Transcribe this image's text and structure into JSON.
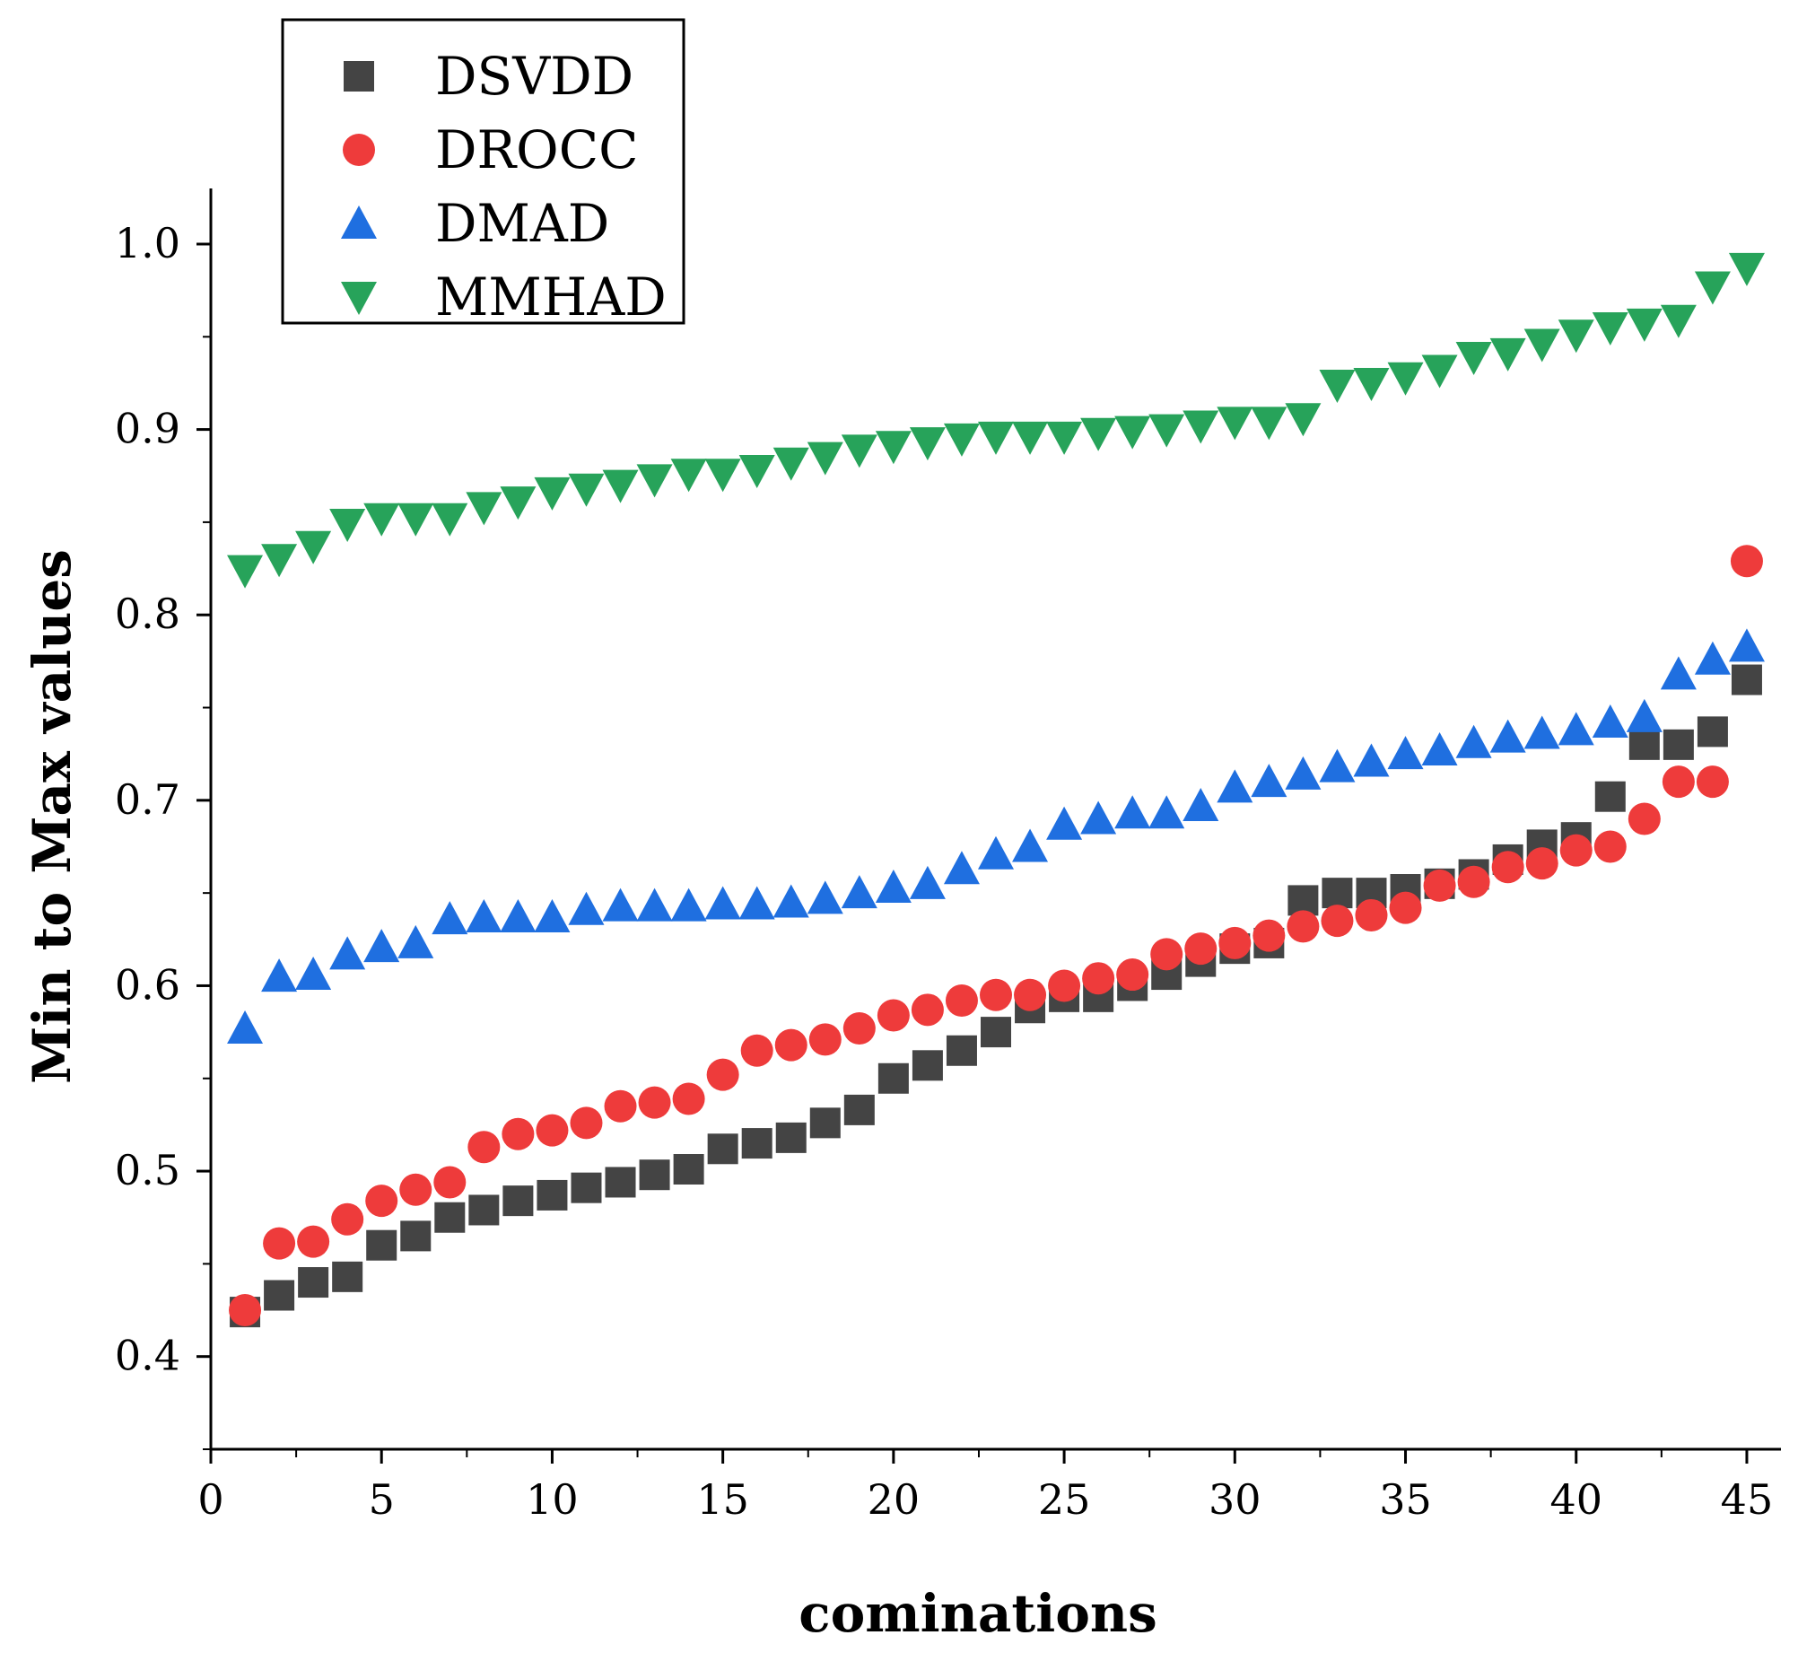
{
  "chart_data": {
    "type": "scatter",
    "title": "",
    "xlabel": "cominations",
    "ylabel": "Min to Max values",
    "xlim": [
      0,
      46
    ],
    "ylim": [
      0.35,
      1.03
    ],
    "x_ticks": [
      0,
      5,
      10,
      15,
      20,
      25,
      30,
      35,
      40,
      45
    ],
    "y_ticks": [
      0.4,
      0.5,
      0.6,
      0.7,
      0.8,
      0.9,
      1.0
    ],
    "x_tick_labels": [
      "0",
      "5",
      "10",
      "15",
      "20",
      "25",
      "30",
      "35",
      "40",
      "45"
    ],
    "y_tick_labels": [
      "0.4",
      "0.5",
      "0.6",
      "0.7",
      "0.8",
      "0.9",
      "1.0"
    ],
    "legend_position": "top-left",
    "x": [
      1,
      2,
      3,
      4,
      5,
      6,
      7,
      8,
      9,
      10,
      11,
      12,
      13,
      14,
      15,
      16,
      17,
      18,
      19,
      20,
      21,
      22,
      23,
      24,
      25,
      26,
      27,
      28,
      29,
      30,
      31,
      32,
      33,
      34,
      35,
      36,
      37,
      38,
      39,
      40,
      41,
      42,
      43,
      44,
      45
    ],
    "series": [
      {
        "name": "DSVDD",
        "marker": "square",
        "color": "#444444",
        "values": [
          0.424,
          0.433,
          0.44,
          0.443,
          0.46,
          0.465,
          0.475,
          0.479,
          0.484,
          0.487,
          0.491,
          0.494,
          0.498,
          0.501,
          0.512,
          0.515,
          0.518,
          0.526,
          0.533,
          0.55,
          0.557,
          0.565,
          0.575,
          0.588,
          0.594,
          0.594,
          0.6,
          0.606,
          0.613,
          0.62,
          0.623,
          0.646,
          0.65,
          0.65,
          0.652,
          0.655,
          0.66,
          0.668,
          0.676,
          0.68,
          0.702,
          0.73,
          0.73,
          0.737,
          0.765
        ]
      },
      {
        "name": "DROCC",
        "marker": "circle",
        "color": "#ee3b3b",
        "values": [
          0.425,
          0.461,
          0.462,
          0.474,
          0.484,
          0.49,
          0.494,
          0.513,
          0.52,
          0.522,
          0.526,
          0.535,
          0.537,
          0.539,
          0.552,
          0.565,
          0.568,
          0.571,
          0.577,
          0.584,
          0.587,
          0.592,
          0.595,
          0.595,
          0.6,
          0.604,
          0.606,
          0.617,
          0.62,
          0.623,
          0.627,
          0.632,
          0.635,
          0.638,
          0.642,
          0.654,
          0.656,
          0.664,
          0.666,
          0.673,
          0.675,
          0.69,
          0.71,
          0.71,
          0.829
        ]
      },
      {
        "name": "DMAD",
        "marker": "triangle-up",
        "color": "#1f6fe0",
        "values": [
          0.577,
          0.605,
          0.606,
          0.617,
          0.621,
          0.623,
          0.636,
          0.637,
          0.637,
          0.637,
          0.641,
          0.643,
          0.643,
          0.643,
          0.644,
          0.644,
          0.645,
          0.647,
          0.65,
          0.653,
          0.655,
          0.663,
          0.671,
          0.675,
          0.687,
          0.69,
          0.693,
          0.693,
          0.697,
          0.707,
          0.71,
          0.714,
          0.718,
          0.721,
          0.725,
          0.727,
          0.731,
          0.734,
          0.736,
          0.738,
          0.742,
          0.745,
          0.768,
          0.776,
          0.783
        ]
      },
      {
        "name": "MMHAD",
        "marker": "triangle-down",
        "color": "#27a35a",
        "values": [
          0.824,
          0.83,
          0.837,
          0.849,
          0.852,
          0.852,
          0.852,
          0.858,
          0.861,
          0.866,
          0.868,
          0.87,
          0.873,
          0.876,
          0.876,
          0.878,
          0.882,
          0.885,
          0.889,
          0.891,
          0.893,
          0.895,
          0.896,
          0.896,
          0.896,
          0.898,
          0.899,
          0.9,
          0.902,
          0.904,
          0.904,
          0.906,
          0.924,
          0.925,
          0.928,
          0.932,
          0.939,
          0.941,
          0.946,
          0.951,
          0.955,
          0.957,
          0.959,
          0.977,
          0.987
        ]
      }
    ]
  }
}
